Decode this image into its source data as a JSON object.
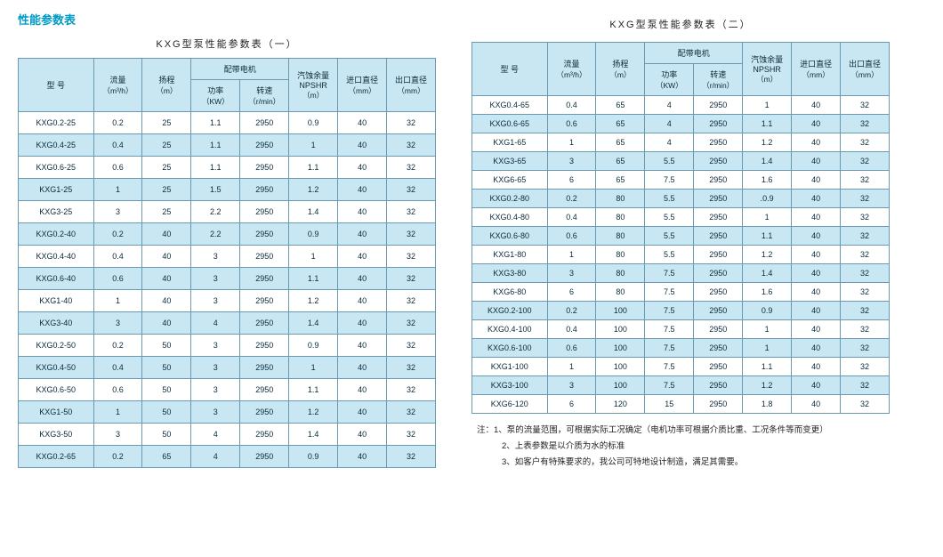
{
  "page_title": "性能参数表",
  "colors": {
    "title": "#009bc4",
    "border_outer": "#0d4d73",
    "border_inner": "#6b99b0",
    "header_bg": "#c8e7f2",
    "stripe_bg": "#c8e7f2",
    "text": "#0a2a3a",
    "bg": "#ffffff"
  },
  "tableA": {
    "title": "KXG型泵性能参数表（一）",
    "header": {
      "model": "型 号",
      "flow": "流量",
      "flow_unit": "（m³/h）",
      "head": "扬程",
      "head_unit": "（m）",
      "motor_group": "配带电机",
      "power": "功率",
      "power_unit": "（KW）",
      "speed": "转速",
      "speed_unit": "（r/min）",
      "npshr": "汽蚀余量\nNPSHR",
      "npshr_unit": "（m）",
      "inlet": "进口直径",
      "inlet_unit": "（mm）",
      "outlet": "出口直径",
      "outlet_unit": "（mm）"
    },
    "rows": [
      [
        "KXG0.2-25",
        "0.2",
        "25",
        "1.1",
        "2950",
        "0.9",
        "40",
        "32"
      ],
      [
        "KXG0.4-25",
        "0.4",
        "25",
        "1.1",
        "2950",
        "1",
        "40",
        "32"
      ],
      [
        "KXG0.6-25",
        "0.6",
        "25",
        "1.1",
        "2950",
        "1.1",
        "40",
        "32"
      ],
      [
        "KXG1-25",
        "1",
        "25",
        "1.5",
        "2950",
        "1.2",
        "40",
        "32"
      ],
      [
        "KXG3-25",
        "3",
        "25",
        "2.2",
        "2950",
        "1.4",
        "40",
        "32"
      ],
      [
        "KXG0.2-40",
        "0.2",
        "40",
        "2.2",
        "2950",
        "0.9",
        "40",
        "32"
      ],
      [
        "KXG0.4-40",
        "0.4",
        "40",
        "3",
        "2950",
        "1",
        "40",
        "32"
      ],
      [
        "KXG0.6-40",
        "0.6",
        "40",
        "3",
        "2950",
        "1.1",
        "40",
        "32"
      ],
      [
        "KXG1-40",
        "1",
        "40",
        "3",
        "2950",
        "1.2",
        "40",
        "32"
      ],
      [
        "KXG3-40",
        "3",
        "40",
        "4",
        "2950",
        "1.4",
        "40",
        "32"
      ],
      [
        "KXG0.2-50",
        "0.2",
        "50",
        "3",
        "2950",
        "0.9",
        "40",
        "32"
      ],
      [
        "KXG0.4-50",
        "0.4",
        "50",
        "3",
        "2950",
        "1",
        "40",
        "32"
      ],
      [
        "KXG0.6-50",
        "0.6",
        "50",
        "3",
        "2950",
        "1.1",
        "40",
        "32"
      ],
      [
        "KXG1-50",
        "1",
        "50",
        "3",
        "2950",
        "1.2",
        "40",
        "32"
      ],
      [
        "KXG3-50",
        "3",
        "50",
        "4",
        "2950",
        "1.4",
        "40",
        "32"
      ],
      [
        "KXG0.2-65",
        "0.2",
        "65",
        "4",
        "2950",
        "0.9",
        "40",
        "32"
      ]
    ]
  },
  "tableB": {
    "title": "KXG型泵性能参数表（二）",
    "header": {
      "model": "型 号",
      "flow": "流量",
      "flow_unit": "（m³/h）",
      "head": "扬程",
      "head_unit": "（m）",
      "motor_group": "配带电机",
      "power": "功率",
      "power_unit": "（KW）",
      "speed": "转速",
      "speed_unit": "（r/min）",
      "npshr": "汽蚀余量\nNPSHR",
      "npshr_unit": "（m）",
      "inlet": "进口直径",
      "inlet_unit": "（mm）",
      "outlet": "出口直径",
      "outlet_unit": "（mm）"
    },
    "rows": [
      [
        "KXG0.4-65",
        "0.4",
        "65",
        "4",
        "2950",
        "1",
        "40",
        "32"
      ],
      [
        "KXG0.6-65",
        "0.6",
        "65",
        "4",
        "2950",
        "1.1",
        "40",
        "32"
      ],
      [
        "KXG1-65",
        "1",
        "65",
        "4",
        "2950",
        "1.2",
        "40",
        "32"
      ],
      [
        "KXG3-65",
        "3",
        "65",
        "5.5",
        "2950",
        "1.4",
        "40",
        "32"
      ],
      [
        "KXG6-65",
        "6",
        "65",
        "7.5",
        "2950",
        "1.6",
        "40",
        "32"
      ],
      [
        "KXG0.2-80",
        "0.2",
        "80",
        "5.5",
        "2950",
        ".0.9",
        "40",
        "32"
      ],
      [
        "KXG0.4-80",
        "0.4",
        "80",
        "5.5",
        "2950",
        "1",
        "40",
        "32"
      ],
      [
        "KXG0.6-80",
        "0.6",
        "80",
        "5.5",
        "2950",
        "1.1",
        "40",
        "32"
      ],
      [
        "KXG1-80",
        "1",
        "80",
        "5.5",
        "2950",
        "1.2",
        "40",
        "32"
      ],
      [
        "KXG3-80",
        "3",
        "80",
        "7.5",
        "2950",
        "1.4",
        "40",
        "32"
      ],
      [
        "KXG6-80",
        "6",
        "80",
        "7.5",
        "2950",
        "1.6",
        "40",
        "32"
      ],
      [
        "KXG0.2-100",
        "0.2",
        "100",
        "7.5",
        "2950",
        "0.9",
        "40",
        "32"
      ],
      [
        "KXG0.4-100",
        "0.4",
        "100",
        "7.5",
        "2950",
        "1",
        "40",
        "32"
      ],
      [
        "KXG0.6-100",
        "0.6",
        "100",
        "7.5",
        "2950",
        "1",
        "40",
        "32"
      ],
      [
        "KXG1-100",
        "1",
        "100",
        "7.5",
        "2950",
        "1.1",
        "40",
        "32"
      ],
      [
        "KXG3-100",
        "3",
        "100",
        "7.5",
        "2950",
        "1.2",
        "40",
        "32"
      ],
      [
        "KXG6-120",
        "6",
        "120",
        "15",
        "2950",
        "1.8",
        "40",
        "32"
      ]
    ]
  },
  "notes": {
    "prefix": "注：",
    "items": [
      "1、泵的流量范围，可根据实际工况确定（电机功率可根据介质比重、工况条件等而变更）",
      "2、上表参数是以介质为水的标准",
      "3、如客户有特殊要求的，我公司可特地设计制造，满足其需要。"
    ]
  }
}
